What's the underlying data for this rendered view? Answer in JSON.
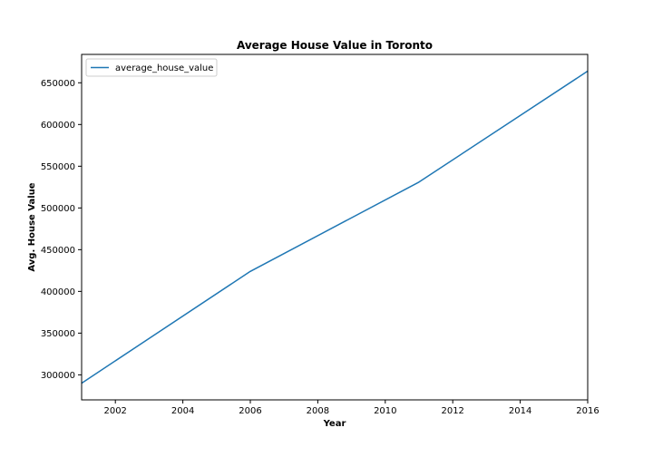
{
  "colors": {
    "series": "#1f77b4",
    "axes": "#000000",
    "background": "#ffffff"
  },
  "chart_data": {
    "type": "line",
    "title": "Average House Value in Toronto",
    "xlabel": "Year",
    "ylabel": "Avg. House Value",
    "xlim": [
      2001,
      2016
    ],
    "ylim": [
      270000,
      684000
    ],
    "xticks": [
      2002,
      2004,
      2006,
      2008,
      2010,
      2012,
      2014,
      2016
    ],
    "yticks": [
      300000,
      350000,
      400000,
      450000,
      500000,
      550000,
      600000,
      650000
    ],
    "grid": false,
    "legend_position": "top-left",
    "series": [
      {
        "name": "average_house_value",
        "x": [
          2001,
          2006,
          2011,
          2016
        ],
        "y": [
          290000,
          424000,
          531000,
          664000
        ]
      }
    ]
  }
}
